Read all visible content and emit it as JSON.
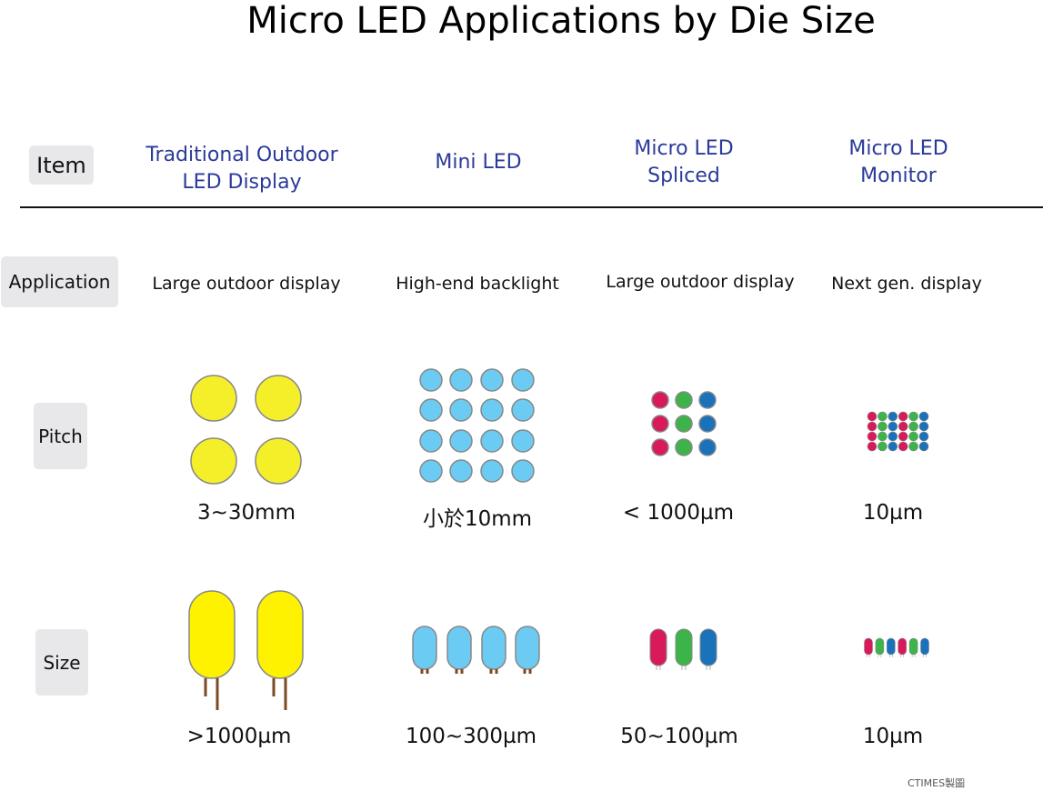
{
  "title": "Micro LED Applications by Die Size",
  "row_labels": {
    "item": "Item",
    "application": "Application",
    "pitch": "Pitch",
    "size": "Size"
  },
  "columns": [
    {
      "header": "Traditional Outdoor\nLED Display",
      "application": "Large outdoor display",
      "pitch": "3~30mm",
      "size": ">1000µm"
    },
    {
      "header": "Mini LED",
      "application": "High-end backlight",
      "pitch": "小於10mm",
      "size": "100~300µm"
    },
    {
      "header": "Micro LED\nSpliced",
      "application": "Large outdoor display",
      "pitch": "< 1000µm",
      "size": "50~100µm"
    },
    {
      "header": "Micro LED\nMonitor",
      "application": "Next gen. display",
      "pitch": "10µm",
      "size": "10µm"
    }
  ],
  "colors": {
    "yellow": "#f5ef2a",
    "yellow_led": "#fff200",
    "cyan": "#6ccbf2",
    "red": "#d91a5a",
    "green": "#3cb44a",
    "blue": "#1a72bb",
    "leg": "#7b4a22",
    "header": "#2b3a9a"
  },
  "credit": "CTIMES製圖"
}
